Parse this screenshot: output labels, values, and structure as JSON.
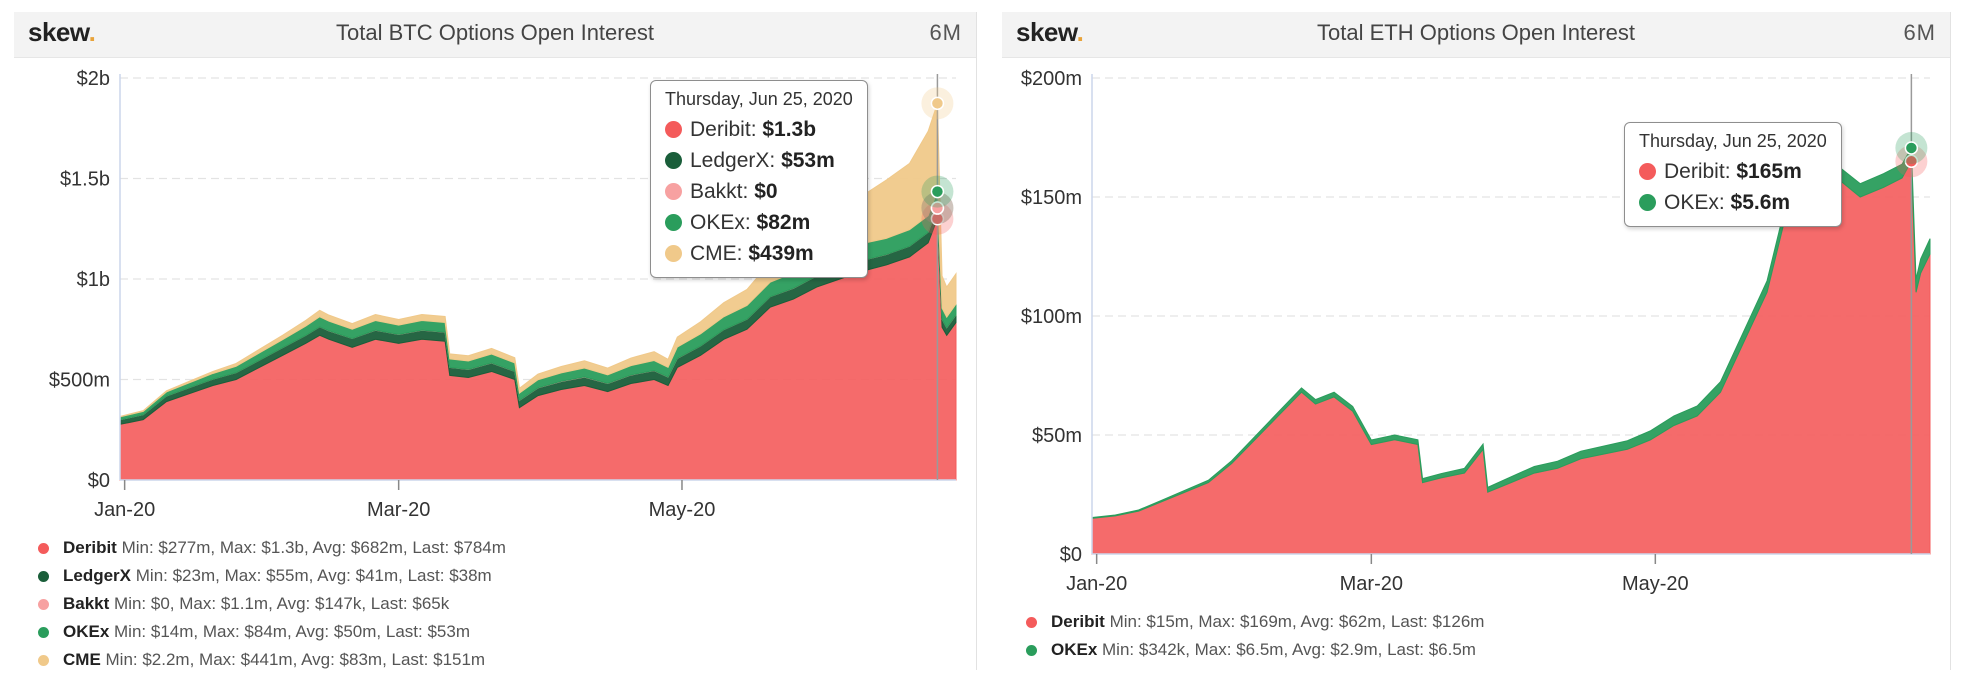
{
  "chart_data": [
    {
      "id": "btc",
      "type": "area",
      "title": "Total BTC Options Open Interest",
      "logo": "skew",
      "period": "6M",
      "stacked": true,
      "y_ticks": [
        "$0",
        "$500m",
        "$1b",
        "$1.5b",
        "$2b"
      ],
      "y_tick_values": [
        0,
        500,
        1000,
        1500,
        2000
      ],
      "ylim": [
        0,
        2000
      ],
      "y_unit": "millions USD",
      "x_ticks": [
        "Jan-20",
        "Mar-20",
        "May-20"
      ],
      "x_tick_days": [
        1,
        60,
        121
      ],
      "xlim": [
        0,
        180
      ],
      "hover_day": 176,
      "tooltip": {
        "date": "Thursday, Jun 25, 2020",
        "rows": [
          {
            "series": "Deribit",
            "value": "$1.3b"
          },
          {
            "series": "LedgerX",
            "value": "$53m"
          },
          {
            "series": "Bakkt",
            "value": "$0"
          },
          {
            "series": "OKEx",
            "value": "$82m"
          },
          {
            "series": "CME",
            "value": "$439m"
          }
        ]
      },
      "x_days": [
        0,
        5,
        10,
        15,
        20,
        25,
        30,
        35,
        40,
        43,
        45,
        50,
        55,
        60,
        65,
        70,
        71,
        75,
        80,
        85,
        86,
        90,
        95,
        100,
        105,
        110,
        115,
        118,
        120,
        125,
        130,
        135,
        140,
        145,
        150,
        155,
        160,
        165,
        170,
        174,
        176,
        177,
        178,
        180
      ],
      "series": [
        {
          "name": "Deribit",
          "color": "#f45b5b",
          "min": "$277m",
          "max": "$1.3b",
          "avg": "$682m",
          "last": "$784m",
          "values": [
            277,
            300,
            390,
            430,
            470,
            500,
            560,
            620,
            680,
            720,
            700,
            660,
            700,
            680,
            700,
            690,
            520,
            510,
            540,
            500,
            360,
            420,
            450,
            470,
            440,
            480,
            500,
            470,
            560,
            620,
            700,
            750,
            860,
            900,
            960,
            1000,
            1040,
            1070,
            1110,
            1180,
            1300,
            760,
            720,
            784
          ]
        },
        {
          "name": "LedgerX",
          "color": "#1a5e3a",
          "min": "$23m",
          "max": "$55m",
          "avg": "$41m",
          "last": "$38m",
          "values": [
            23,
            25,
            28,
            30,
            32,
            34,
            36,
            38,
            40,
            42,
            42,
            44,
            45,
            44,
            45,
            45,
            40,
            40,
            42,
            40,
            36,
            38,
            40,
            42,
            40,
            42,
            44,
            42,
            45,
            47,
            48,
            50,
            52,
            54,
            55,
            54,
            53,
            52,
            53,
            53,
            53,
            40,
            38,
            38
          ]
        },
        {
          "name": "Bakkt",
          "color": "#f7a1a1",
          "min": "$0",
          "max": "$1.1m",
          "avg": "$147k",
          "last": "$65k",
          "values": [
            0,
            0,
            0,
            0,
            0,
            0,
            0.1,
            0.1,
            0.1,
            0.2,
            0.2,
            0.2,
            0.3,
            0.3,
            0.4,
            0.4,
            0.3,
            0.3,
            0.5,
            0.5,
            0.5,
            0.8,
            1.0,
            1.1,
            0.9,
            0.7,
            0.5,
            0.4,
            0.3,
            0.2,
            0.2,
            0.1,
            0.1,
            0.1,
            0.1,
            0.1,
            0.1,
            0.1,
            0.1,
            0,
            0,
            0.1,
            0.1,
            0.1
          ]
        },
        {
          "name": "OKEx",
          "color": "#2a9d5c",
          "min": "$14m",
          "max": "$84m",
          "avg": "$50m",
          "last": "$53m",
          "values": [
            14,
            16,
            20,
            24,
            28,
            32,
            36,
            40,
            46,
            50,
            48,
            46,
            48,
            46,
            48,
            48,
            42,
            42,
            44,
            42,
            36,
            40,
            42,
            44,
            42,
            46,
            50,
            48,
            56,
            60,
            64,
            68,
            72,
            76,
            80,
            82,
            84,
            80,
            82,
            82,
            82,
            55,
            52,
            53
          ]
        },
        {
          "name": "CME",
          "color": "#f0c98a",
          "min": "$2.2m",
          "max": "$441m",
          "avg": "$83m",
          "last": "$151m",
          "values": [
            2.2,
            4,
            6,
            8,
            10,
            14,
            18,
            22,
            28,
            32,
            30,
            28,
            30,
            28,
            30,
            30,
            25,
            26,
            28,
            26,
            24,
            28,
            32,
            36,
            34,
            38,
            44,
            40,
            50,
            60,
            70,
            80,
            100,
            120,
            150,
            190,
            240,
            290,
            330,
            420,
            439,
            160,
            150,
            151
          ]
        }
      ]
    },
    {
      "id": "eth",
      "type": "area",
      "title": "Total ETH Options Open Interest",
      "logo": "skew",
      "period": "6M",
      "stacked": true,
      "y_ticks": [
        "$0",
        "$50m",
        "$100m",
        "$150m",
        "$200m"
      ],
      "y_tick_values": [
        0,
        50,
        100,
        150,
        200
      ],
      "ylim": [
        0,
        200
      ],
      "y_unit": "millions USD",
      "x_ticks": [
        "Jan-20",
        "Mar-20",
        "May-20"
      ],
      "x_tick_days": [
        1,
        60,
        121
      ],
      "xlim": [
        0,
        180
      ],
      "hover_day": 176,
      "tooltip": {
        "date": "Thursday, Jun 25, 2020",
        "rows": [
          {
            "series": "Deribit",
            "value": "$165m"
          },
          {
            "series": "OKEx",
            "value": "$5.6m"
          }
        ]
      },
      "x_days": [
        0,
        5,
        10,
        15,
        20,
        25,
        30,
        35,
        40,
        45,
        48,
        52,
        56,
        60,
        65,
        70,
        71,
        75,
        80,
        84,
        85,
        90,
        95,
        100,
        105,
        110,
        115,
        120,
        125,
        130,
        135,
        145,
        150,
        155,
        160,
        165,
        170,
        174,
        176,
        177,
        178,
        180
      ],
      "series": [
        {
          "name": "Deribit",
          "color": "#f45b5b",
          "min": "$15m",
          "max": "$169m",
          "avg": "$62m",
          "last": "$126m",
          "values": [
            15,
            16,
            18,
            22,
            26,
            30,
            38,
            48,
            58,
            68,
            63,
            66,
            60,
            46,
            48,
            46,
            30,
            32,
            34,
            44,
            26,
            30,
            34,
            36,
            40,
            42,
            44,
            48,
            54,
            58,
            68,
            110,
            150,
            150,
            158,
            150,
            154,
            158,
            165,
            110,
            118,
            126
          ]
        },
        {
          "name": "OKEx",
          "color": "#2a9d5c",
          "min": "$342k",
          "max": "$6.5m",
          "avg": "$2.9m",
          "last": "$6.5m",
          "values": [
            0.342,
            0.4,
            0.5,
            0.6,
            0.8,
            1.0,
            1.2,
            1.4,
            1.6,
            1.8,
            1.9,
            2.0,
            2.0,
            1.9,
            2.0,
            2.0,
            1.7,
            1.8,
            2.0,
            2.2,
            2.0,
            2.4,
            2.8,
            3.0,
            3.2,
            3.4,
            3.6,
            3.8,
            4.0,
            4.2,
            4.4,
            4.8,
            5.0,
            5.2,
            5.4,
            5.6,
            5.8,
            5.8,
            5.6,
            5.5,
            6.0,
            6.5
          ]
        }
      ]
    }
  ]
}
